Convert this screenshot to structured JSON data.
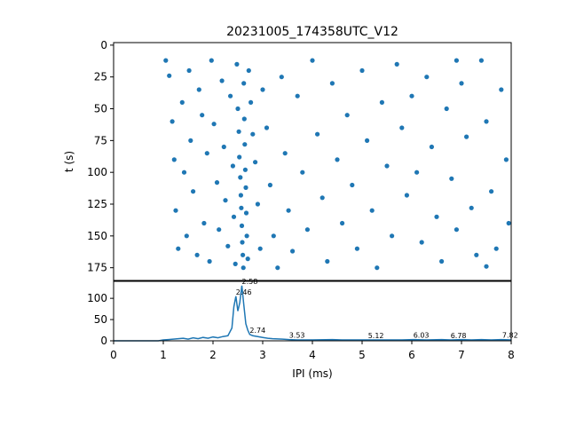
{
  "chart_data": [
    {
      "type": "scatter",
      "title": "20231005_174358UTC_V12",
      "xlabel": "",
      "ylabel": "t (s)",
      "xlim": [
        0,
        8
      ],
      "ylim": [
        185,
        -2
      ],
      "y_inverted": true,
      "ytick_labels": [
        "0",
        "25",
        "50",
        "75",
        "100",
        "125",
        "150",
        "175"
      ],
      "ytick_values": [
        0,
        25,
        50,
        75,
        100,
        125,
        150,
        175
      ],
      "series": [
        {
          "color": "#1f77b4",
          "description_of_distribution": "points at x in [1.0, 8.0], t in [10, 180]; dense vertical band near x=2.5",
          "points": [
            [
              1.05,
              12
            ],
            [
              1.12,
              24
            ],
            [
              1.18,
              60
            ],
            [
              1.22,
              90
            ],
            [
              1.25,
              130
            ],
            [
              1.3,
              160
            ],
            [
              1.38,
              45
            ],
            [
              1.42,
              100
            ],
            [
              1.47,
              150
            ],
            [
              1.52,
              20
            ],
            [
              1.55,
              75
            ],
            [
              1.6,
              115
            ],
            [
              1.68,
              165
            ],
            [
              1.72,
              35
            ],
            [
              1.78,
              55
            ],
            [
              1.82,
              140
            ],
            [
              1.88,
              85
            ],
            [
              1.93,
              170
            ],
            [
              1.97,
              12
            ],
            [
              2.02,
              62
            ],
            [
              2.08,
              108
            ],
            [
              2.12,
              145
            ],
            [
              2.18,
              28
            ],
            [
              2.22,
              80
            ],
            [
              2.25,
              122
            ],
            [
              2.3,
              158
            ],
            [
              2.35,
              40
            ],
            [
              2.4,
              95
            ],
            [
              2.42,
              135
            ],
            [
              2.45,
              172
            ],
            [
              2.48,
              15
            ],
            [
              2.5,
              50
            ],
            [
              2.52,
              68
            ],
            [
              2.53,
              88
            ],
            [
              2.55,
              104
            ],
            [
              2.56,
              118
            ],
            [
              2.57,
              128
            ],
            [
              2.58,
              142
            ],
            [
              2.59,
              155
            ],
            [
              2.6,
              165
            ],
            [
              2.61,
              175
            ],
            [
              2.62,
              30
            ],
            [
              2.63,
              58
            ],
            [
              2.64,
              78
            ],
            [
              2.65,
              98
            ],
            [
              2.66,
              112
            ],
            [
              2.67,
              132
            ],
            [
              2.68,
              150
            ],
            [
              2.7,
              168
            ],
            [
              2.72,
              20
            ],
            [
              2.76,
              45
            ],
            [
              2.8,
              70
            ],
            [
              2.85,
              92
            ],
            [
              2.9,
              125
            ],
            [
              2.95,
              160
            ],
            [
              3.0,
              35
            ],
            [
              3.08,
              65
            ],
            [
              3.15,
              110
            ],
            [
              3.22,
              150
            ],
            [
              3.3,
              175
            ],
            [
              3.38,
              25
            ],
            [
              3.45,
              85
            ],
            [
              3.52,
              130
            ],
            [
              3.6,
              162
            ],
            [
              3.7,
              40
            ],
            [
              3.8,
              100
            ],
            [
              3.9,
              145
            ],
            [
              4.0,
              12
            ],
            [
              4.1,
              70
            ],
            [
              4.2,
              120
            ],
            [
              4.3,
              170
            ],
            [
              4.4,
              30
            ],
            [
              4.5,
              90
            ],
            [
              4.6,
              140
            ],
            [
              4.7,
              55
            ],
            [
              4.8,
              110
            ],
            [
              4.9,
              160
            ],
            [
              5.0,
              20
            ],
            [
              5.1,
              75
            ],
            [
              5.2,
              130
            ],
            [
              5.3,
              175
            ],
            [
              5.4,
              45
            ],
            [
              5.5,
              95
            ],
            [
              5.6,
              150
            ],
            [
              5.7,
              15
            ],
            [
              5.8,
              65
            ],
            [
              5.9,
              118
            ],
            [
              6.0,
              40
            ],
            [
              6.1,
              100
            ],
            [
              6.2,
              155
            ],
            [
              6.3,
              25
            ],
            [
              6.4,
              80
            ],
            [
              6.5,
              135
            ],
            [
              6.6,
              170
            ],
            [
              6.7,
              50
            ],
            [
              6.8,
              105
            ],
            [
              6.9,
              145
            ],
            [
              7.0,
              30
            ],
            [
              7.1,
              72
            ],
            [
              7.2,
              128
            ],
            [
              7.3,
              165
            ],
            [
              7.4,
              12
            ],
            [
              7.5,
              60
            ],
            [
              7.6,
              115
            ],
            [
              7.7,
              160
            ],
            [
              7.8,
              35
            ],
            [
              7.9,
              90
            ],
            [
              7.95,
              140
            ],
            [
              7.5,
              174
            ],
            [
              6.9,
              12
            ]
          ]
        }
      ]
    },
    {
      "type": "line",
      "title": "",
      "xlabel": "IPI (ms)",
      "ylabel": "",
      "xlim": [
        0,
        8
      ],
      "ylim": [
        0,
        140
      ],
      "xtick_labels": [
        "0",
        "1",
        "2",
        "3",
        "4",
        "5",
        "6",
        "7",
        "8"
      ],
      "xtick_values": [
        0,
        1,
        2,
        3,
        4,
        5,
        6,
        7,
        8
      ],
      "ytick_labels": [
        "0",
        "50",
        "100"
      ],
      "ytick_values": [
        0,
        50,
        100
      ],
      "series": [
        {
          "color": "#1f77b4",
          "x": [
            0,
            0.9,
            1.0,
            1.1,
            1.2,
            1.3,
            1.4,
            1.5,
            1.6,
            1.7,
            1.8,
            1.9,
            2.0,
            2.1,
            2.2,
            2.3,
            2.38,
            2.42,
            2.46,
            2.5,
            2.54,
            2.58,
            2.62,
            2.66,
            2.7,
            2.74,
            2.8,
            2.9,
            3.0,
            3.1,
            3.2,
            3.4,
            3.53,
            3.7,
            4.0,
            4.4,
            4.6,
            4.8,
            5.12,
            5.4,
            5.8,
            6.03,
            6.3,
            6.6,
            6.78,
            7.0,
            7.2,
            7.4,
            7.6,
            7.8,
            8.0
          ],
          "y": [
            0,
            0,
            2,
            3,
            4,
            5,
            6,
            4,
            7,
            5,
            8,
            6,
            9,
            7,
            10,
            12,
            30,
            80,
            105,
            70,
            90,
            130,
            85,
            40,
            25,
            15,
            12,
            10,
            8,
            6,
            5,
            4,
            3,
            2,
            2,
            3,
            2,
            2,
            2,
            2,
            2,
            3,
            2,
            3,
            2,
            3,
            2,
            3,
            2,
            3,
            2
          ]
        }
      ],
      "annotations": [
        {
          "text": "2.58",
          "x": 2.58,
          "y": 130
        },
        {
          "text": "2.46",
          "x": 2.46,
          "y": 105
        },
        {
          "text": "2.74",
          "x": 2.74,
          "y": 15
        },
        {
          "text": "3.53",
          "x": 3.53,
          "y": 3
        },
        {
          "text": "5.12",
          "x": 5.12,
          "y": 2
        },
        {
          "text": "6.03",
          "x": 6.03,
          "y": 3
        },
        {
          "text": "6.78",
          "x": 6.78,
          "y": 2
        },
        {
          "text": "7.82",
          "x": 7.82,
          "y": 3
        }
      ]
    }
  ]
}
